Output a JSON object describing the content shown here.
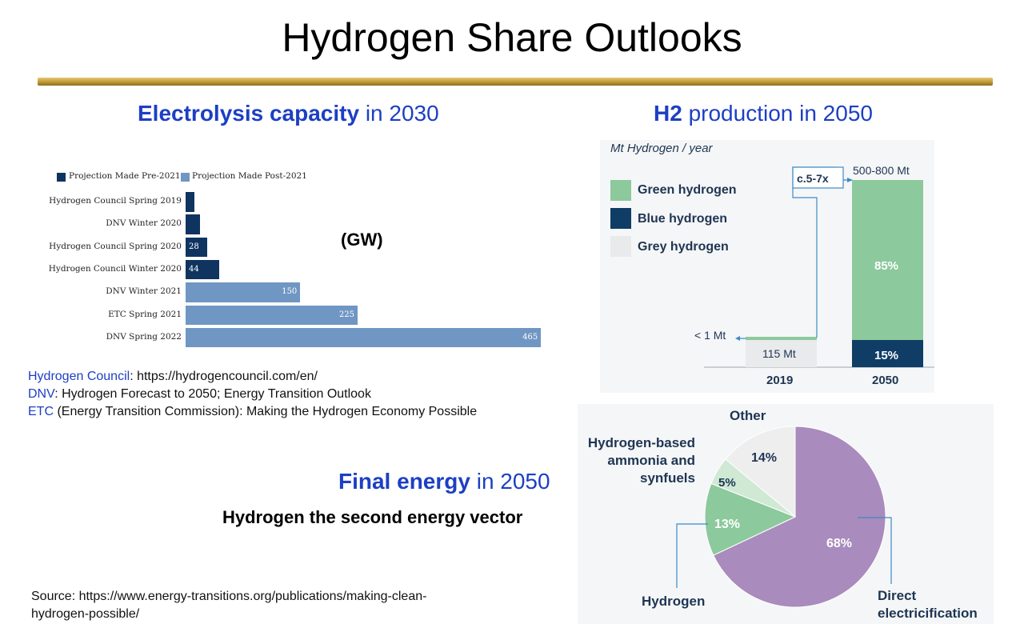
{
  "title": "Hydrogen Share Outlooks",
  "electrolysis": {
    "heading_bold": "Electrolysis capacity",
    "heading_rest": " in 2030",
    "unit_label": "(GW)"
  },
  "h2_production": {
    "heading_bold": "H2",
    "heading_rest": " production in 2050"
  },
  "final_energy": {
    "heading_bold": "Final energy",
    "heading_rest": " in 2050",
    "subtitle": "Hydrogen the second energy vector"
  },
  "references": [
    {
      "key": "Hydrogen Council",
      "text": ": https://hydrogencouncil.com/en/"
    },
    {
      "key": "DNV",
      "text": ": Hydrogen Forecast to 2050; Energy Transition Outlook"
    },
    {
      "key": "ETC",
      "text": " (Energy Transition Commission): Making the Hydrogen Economy Possible"
    }
  ],
  "source": "Source: https://www.energy-transitions.org/publications/making-clean-hydrogen-possible/",
  "chart_data": [
    {
      "type": "bar",
      "orientation": "horizontal",
      "categories": [
        "Hydrogen Council Spring 2019",
        "DNV Winter 2020",
        "Hydrogen Council Spring 2020",
        "Hydrogen Council Winter 2020",
        "DNV Winter 2021",
        "ETC Spring 2021",
        "DNV Spring 2022"
      ],
      "values": [
        12,
        19,
        28,
        44,
        150,
        225,
        465
      ],
      "value_labels": [
        "",
        "",
        "28",
        "44",
        "150",
        "225",
        "465"
      ],
      "groups": [
        "pre",
        "pre",
        "pre",
        "pre",
        "post",
        "post",
        "post"
      ],
      "legend": [
        {
          "name": "Projection Made Pre-2021",
          "color": "#0f3460"
        },
        {
          "name": "Projection Made Post-2021",
          "color": "#7096c3"
        }
      ],
      "legend_position": "top-left",
      "xlim": [
        0,
        470
      ],
      "grid": false
    },
    {
      "type": "bar",
      "stacked": true,
      "ylabel": "Mt Hydrogen / year",
      "categories": [
        "2019",
        "2050"
      ],
      "series": [
        {
          "name": "Grey hydrogen",
          "color": "#e9eaec",
          "labels": [
            "115 Mt",
            ""
          ]
        },
        {
          "name": "Blue hydrogen",
          "color": "#0f3d66",
          "labels": [
            "",
            "15%"
          ],
          "shares": [
            0,
            15
          ]
        },
        {
          "name": "Green hydrogen",
          "color": "#8cc99c",
          "labels": [
            "",
            "85%"
          ],
          "shares": [
            0,
            85
          ]
        }
      ],
      "annotations": {
        "green_2019": "< 1 Mt",
        "total_2050": "500-800 Mt",
        "growth": "c.5-7x"
      },
      "legend_position": "top-left",
      "grid": false
    },
    {
      "type": "pie",
      "slices": [
        {
          "name": "Direct electricification",
          "value": 68,
          "label": "68%",
          "color": "#a98bbd"
        },
        {
          "name": "Hydrogen",
          "value": 13,
          "label": "13%",
          "color": "#8cc99c"
        },
        {
          "name": "Hydrogen-based ammonia and synfuels",
          "value": 5,
          "label": "5%",
          "color": "#cfe9d4"
        },
        {
          "name": "Other",
          "value": 14,
          "label": "14%",
          "color": "#eeeeee"
        }
      ]
    }
  ],
  "pie_labels": {
    "other": "Other",
    "ammonia_line1": "Hydrogen-based",
    "ammonia_line2": "ammonia and",
    "ammonia_line3": "synfuels",
    "hydrogen": "Hydrogen",
    "direct_line1": "Direct",
    "direct_line2": "electricification"
  }
}
